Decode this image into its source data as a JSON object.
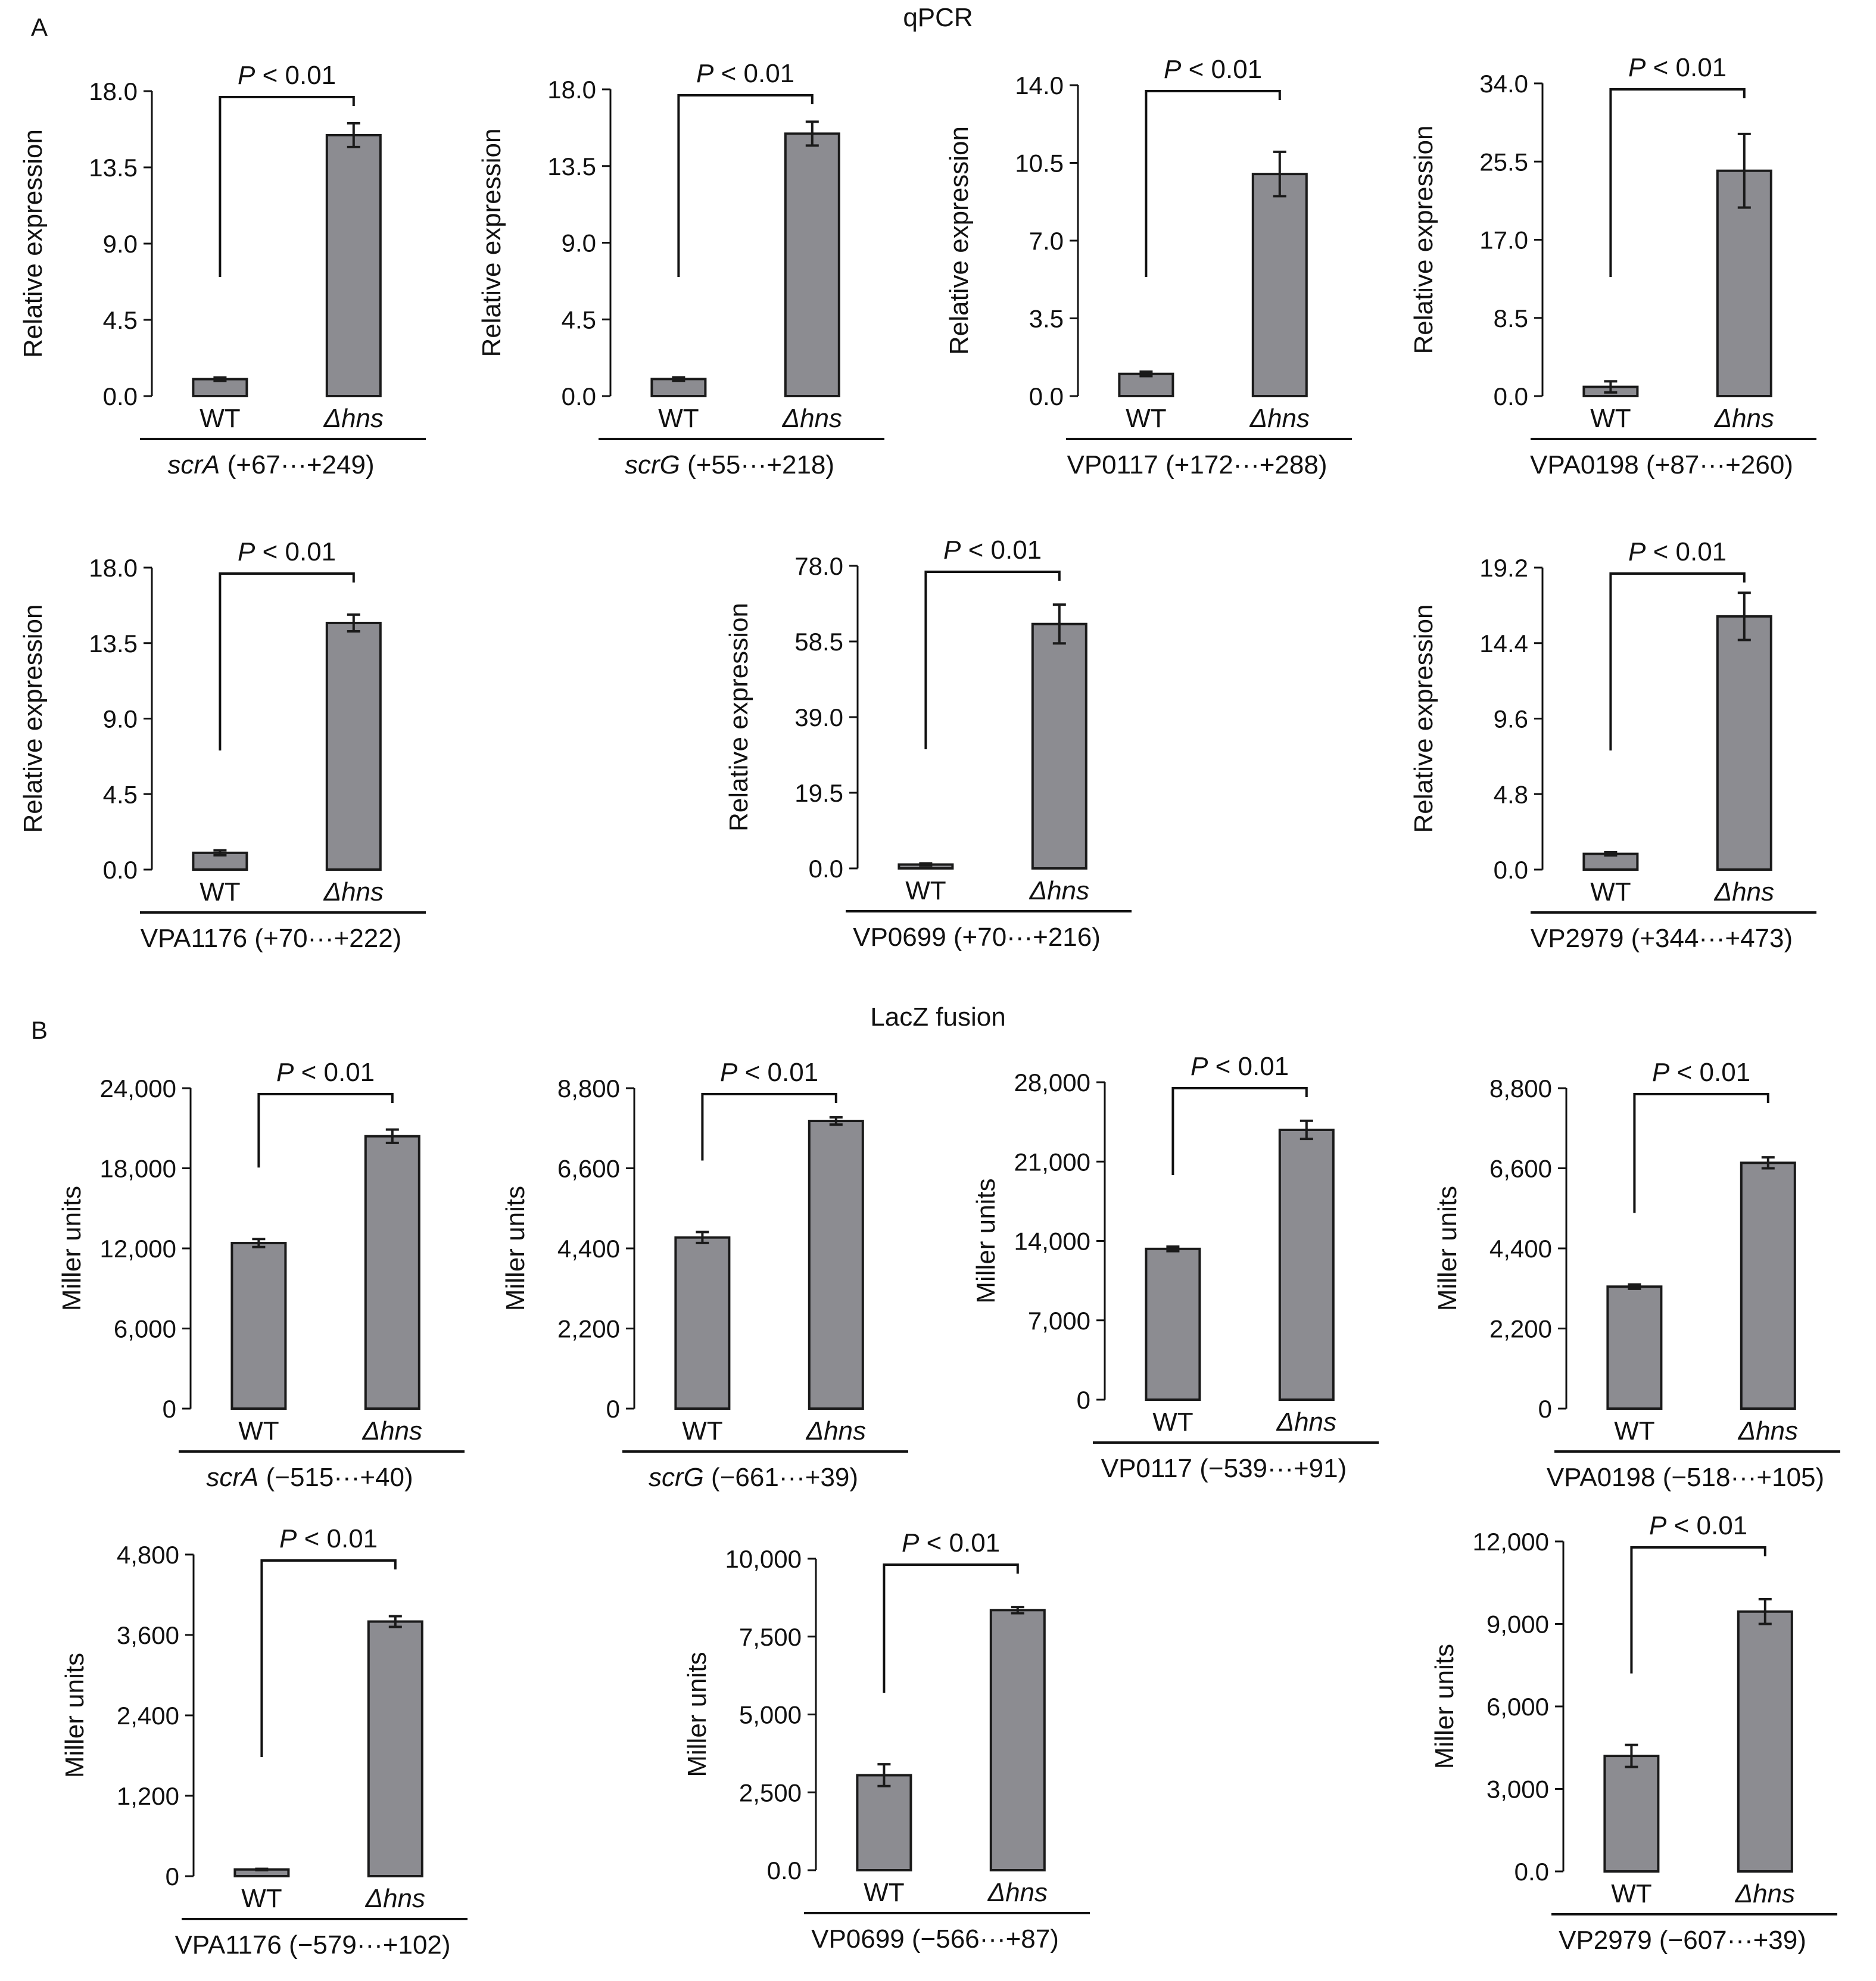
{
  "panel_letters": {
    "a": "A",
    "b": "B"
  },
  "section_titles": {
    "a": "qPCR",
    "b": "LacZ fusion"
  },
  "colors": {
    "bar_fill": "#8c8c91",
    "bar_stroke": "#1a1a1a",
    "axis": "#111111",
    "text": "#111111"
  },
  "chart_data": [
    {
      "type": "bar",
      "panel": "A",
      "ylabel": "Relative expression",
      "categories": [
        "WT",
        "Δhns"
      ],
      "values": [
        1.0,
        15.4
      ],
      "error": [
        0.1,
        0.7
      ],
      "ylim": [
        0,
        18.0
      ],
      "yticks": [
        "0.0",
        "4.5",
        "9.0",
        "13.5",
        "18.0"
      ],
      "significance": "P < 0.01",
      "gene": "scrA",
      "region": " (+67···+249)"
    },
    {
      "type": "bar",
      "panel": "A",
      "ylabel": "Relative expression",
      "categories": [
        "WT",
        "Δhns"
      ],
      "values": [
        1.0,
        15.4
      ],
      "error": [
        0.1,
        0.7
      ],
      "ylim": [
        0,
        18.0
      ],
      "yticks": [
        "0.0",
        "4.5",
        "9.0",
        "13.5",
        "18.0"
      ],
      "significance": "P < 0.01",
      "gene": "scrG",
      "region": " (+55···+218)"
    },
    {
      "type": "bar",
      "panel": "A",
      "ylabel": "Relative expression",
      "categories": [
        "WT",
        "Δhns"
      ],
      "values": [
        1.0,
        10.0
      ],
      "error": [
        0.1,
        1.0
      ],
      "ylim": [
        0,
        14.0
      ],
      "yticks": [
        "0.0",
        "3.5",
        "7.0",
        "10.5",
        "14.0"
      ],
      "significance": "P < 0.01",
      "gene": "",
      "region": "VP0117 (+172···+288)"
    },
    {
      "type": "bar",
      "panel": "A",
      "ylabel": "Relative expression",
      "categories": [
        "WT",
        "Δhns"
      ],
      "values": [
        1.0,
        24.5
      ],
      "error": [
        0.6,
        4.0
      ],
      "ylim": [
        0,
        34.0
      ],
      "yticks": [
        "0.0",
        "8.5",
        "17.0",
        "25.5",
        "34.0"
      ],
      "significance": "P < 0.01",
      "gene": "",
      "region": "VPA0198 (+87···+260)"
    },
    {
      "type": "bar",
      "panel": "A",
      "ylabel": "Relative expression",
      "categories": [
        "WT",
        "Δhns"
      ],
      "values": [
        1.0,
        14.7
      ],
      "error": [
        0.15,
        0.5
      ],
      "ylim": [
        0,
        18.0
      ],
      "yticks": [
        "0.0",
        "4.5",
        "9.0",
        "13.5",
        "18.0"
      ],
      "significance": "P < 0.01",
      "gene": "",
      "region": "VPA1176 (+70···+222)"
    },
    {
      "type": "bar",
      "panel": "A",
      "ylabel": "Relative expression",
      "categories": [
        "WT",
        "Δhns"
      ],
      "values": [
        1.0,
        63.0
      ],
      "error": [
        0.3,
        5.0
      ],
      "ylim": [
        0,
        78.0
      ],
      "yticks": [
        "0.0",
        "19.5",
        "39.0",
        "58.5",
        "78.0"
      ],
      "significance": "P < 0.01",
      "gene": "",
      "region": "VP0699 (+70···+216)"
    },
    {
      "type": "bar",
      "panel": "A",
      "ylabel": "Relative expression",
      "categories": [
        "WT",
        "Δhns"
      ],
      "values": [
        1.0,
        16.1
      ],
      "error": [
        0.1,
        1.5
      ],
      "ylim": [
        0,
        19.2
      ],
      "yticks": [
        "0.0",
        "4.8",
        "9.6",
        "14.4",
        "19.2"
      ],
      "significance": "P < 0.01",
      "gene": "",
      "region": "VP2979 (+344···+473)"
    },
    {
      "type": "bar",
      "panel": "B",
      "ylabel": "Miller units",
      "categories": [
        "WT",
        "Δhns"
      ],
      "values": [
        12400,
        20400
      ],
      "error": [
        300,
        500
      ],
      "ylim": [
        0,
        24000
      ],
      "yticks": [
        "0",
        "6,000",
        "12,000",
        "18,000",
        "24,000"
      ],
      "significance": "P < 0.01",
      "gene": "scrA",
      "region": " (−515···+40)"
    },
    {
      "type": "bar",
      "panel": "B",
      "ylabel": "Miller units",
      "categories": [
        "WT",
        "Δhns"
      ],
      "values": [
        4700,
        7900
      ],
      "error": [
        150,
        100
      ],
      "ylim": [
        0,
        8800
      ],
      "yticks": [
        "0",
        "2,200",
        "4,400",
        "6,600",
        "8,800"
      ],
      "significance": "P < 0.01",
      "gene": "scrG",
      "region": " (−661···+39)"
    },
    {
      "type": "bar",
      "panel": "B",
      "ylabel": "Miller units",
      "categories": [
        "WT",
        "Δhns"
      ],
      "values": [
        13300,
        23800
      ],
      "error": [
        200,
        800
      ],
      "ylim": [
        0,
        28000
      ],
      "yticks": [
        "0",
        "7,000",
        "14,000",
        "21,000",
        "28,000"
      ],
      "significance": "P < 0.01",
      "gene": "",
      "region": "VP0117 (−539···+91)"
    },
    {
      "type": "bar",
      "panel": "B",
      "ylabel": "Miller units",
      "categories": [
        "WT",
        "Δhns"
      ],
      "values": [
        3350,
        6750
      ],
      "error": [
        60,
        150
      ],
      "ylim": [
        0,
        8800
      ],
      "yticks": [
        "0",
        "2,200",
        "4,400",
        "6,600",
        "8,800"
      ],
      "significance": "P < 0.01",
      "gene": "",
      "region": "VPA0198 (−518···+105)"
    },
    {
      "type": "bar",
      "panel": "B",
      "ylabel": "Miller units",
      "categories": [
        "WT",
        "Δhns"
      ],
      "values": [
        100,
        3800
      ],
      "error": [
        10,
        80
      ],
      "ylim": [
        0,
        4800
      ],
      "yticks": [
        "0",
        "1,200",
        "2,400",
        "3,600",
        "4,800"
      ],
      "significance": "P < 0.01",
      "gene": "",
      "region": "VPA1176 (−579···+102)"
    },
    {
      "type": "bar",
      "panel": "B",
      "ylabel": "Miller units",
      "categories": [
        "WT",
        "Δhns"
      ],
      "values": [
        3050,
        8350
      ],
      "error": [
        350,
        100
      ],
      "ylim": [
        0,
        10000
      ],
      "yticks": [
        "0.0",
        "2,500",
        "5,000",
        "7,500",
        "10,000"
      ],
      "significance": "P < 0.01",
      "gene": "",
      "region": "VP0699 (−566···+87)"
    },
    {
      "type": "bar",
      "panel": "B",
      "ylabel": "Miller units",
      "categories": [
        "WT",
        "Δhns"
      ],
      "values": [
        4200,
        9450
      ],
      "error": [
        400,
        450
      ],
      "ylim": [
        0,
        12000
      ],
      "yticks": [
        "0.0",
        "3,000",
        "6,000",
        "9,000",
        "12,000"
      ],
      "significance": "P < 0.01",
      "gene": "",
      "region": "VP2979 (−607···+39)"
    }
  ]
}
